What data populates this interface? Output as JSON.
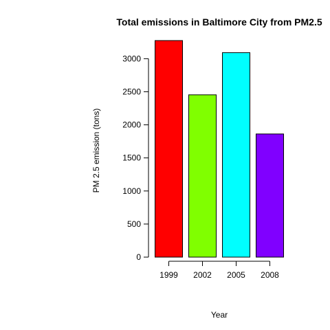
{
  "chart_data": {
    "type": "bar",
    "title": "Total emissions in Baltimore City from PM2.5",
    "xlabel": "Year",
    "ylabel": "PM 2.5 emission (tons)",
    "categories": [
      "1999",
      "2002",
      "2005",
      "2008"
    ],
    "values": [
      3274,
      2454,
      3091,
      1862
    ],
    "colors": [
      "#ff0000",
      "#80ff00",
      "#00ffff",
      "#8000ff"
    ],
    "y_ticks": [
      0,
      500,
      1000,
      1500,
      2000,
      2500,
      3000
    ],
    "ylim": [
      0,
      3274
    ],
    "grid": false,
    "legend": "none"
  }
}
